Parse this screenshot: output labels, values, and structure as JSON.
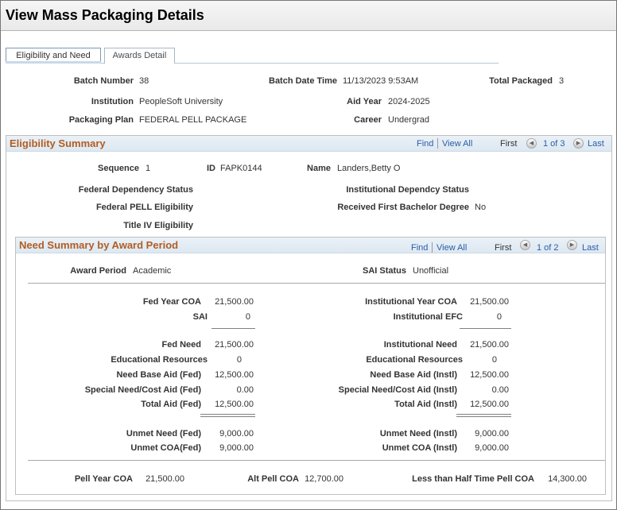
{
  "window": {
    "title": "View Mass Packaging Details"
  },
  "tabs": [
    {
      "label": "Eligibility and Need",
      "active": true
    },
    {
      "label": "Awards Detail",
      "active": false
    }
  ],
  "header": {
    "batch_number_label": "Batch Number",
    "batch_number": "38",
    "batch_date_time_label": "Batch Date Time",
    "batch_date_time": "11/13/2023  9:53AM",
    "total_packaged_label": "Total Packaged",
    "total_packaged": "3",
    "institution_label": "Institution",
    "institution": "PeopleSoft University",
    "aid_year_label": "Aid Year",
    "aid_year": "2024-2025",
    "packaging_plan_label": "Packaging Plan",
    "packaging_plan": "FEDERAL PELL PACKAGE",
    "career_label": "Career",
    "career": "Undergrad"
  },
  "eligibility": {
    "title": "Eligibility Summary",
    "find": "Find",
    "view_all": "View All",
    "first": "First",
    "count": "1 of 3",
    "last": "Last",
    "sequence_label": "Sequence",
    "sequence": "1",
    "id_label": "ID",
    "id": "FAPK0144",
    "name_label": "Name",
    "name": "Landers,Betty O",
    "fed_dependency_label": "Federal Dependency Status",
    "inst_dependency_label": "Institutional Dependcy Status",
    "fed_pell_label": "Federal PELL Eligibility",
    "first_bachelor_label": "Received First Bachelor Degree",
    "first_bachelor": "No",
    "title_iv_label": "Title IV Eligibility"
  },
  "need": {
    "title": "Need Summary by Award Period",
    "find": "Find",
    "view_all": "View All",
    "first": "First",
    "count": "1 of 2",
    "last": "Last",
    "award_period_label": "Award Period",
    "award_period": "Academic",
    "sai_status_label": "SAI Status",
    "sai_status": "Unofficial",
    "fed": {
      "year_coa_label": "Fed Year COA",
      "year_coa": "21,500.00",
      "sai_label": "SAI",
      "sai": "0",
      "need_label": "Fed Need",
      "need": "21,500.00",
      "edu_res_label": "Educational Resources",
      "edu_res": "0",
      "need_base_label": "Need Base Aid (Fed)",
      "need_base": "12,500.00",
      "special_label": "Special Need/Cost Aid (Fed)",
      "special": "0.00",
      "total_label": "Total Aid (Fed)",
      "total": "12,500.00",
      "unmet_need_label": "Unmet Need (Fed)",
      "unmet_need": "9,000.00",
      "unmet_coa_label": "Unmet COA(Fed)",
      "unmet_coa": "9,000.00"
    },
    "inst": {
      "year_coa_label": "Institutional Year COA",
      "year_coa": "21,500.00",
      "efc_label": "Institutional EFC",
      "efc": "0",
      "need_label": "Institutional Need",
      "need": "21,500.00",
      "edu_res_label": "Educational Resources",
      "edu_res": "0",
      "need_base_label": "Need Base Aid (Instl)",
      "need_base": "12,500.00",
      "special_label": "Special Need/Cost Aid (Instl)",
      "special": "0.00",
      "total_label": "Total Aid (Instl)",
      "total": "12,500.00",
      "unmet_need_label": "Unmet Need (Instl)",
      "unmet_need": "9,000.00",
      "unmet_coa_label": "Unmet COA (Instl)",
      "unmet_coa": "9,000.00"
    },
    "pell_year_coa_label": "Pell Year COA",
    "pell_year_coa": "21,500.00",
    "alt_pell_coa_label": "Alt Pell COA",
    "alt_pell_coa": "12,700.00",
    "half_time_label": "Less than Half Time Pell COA",
    "half_time": "14,300.00"
  }
}
